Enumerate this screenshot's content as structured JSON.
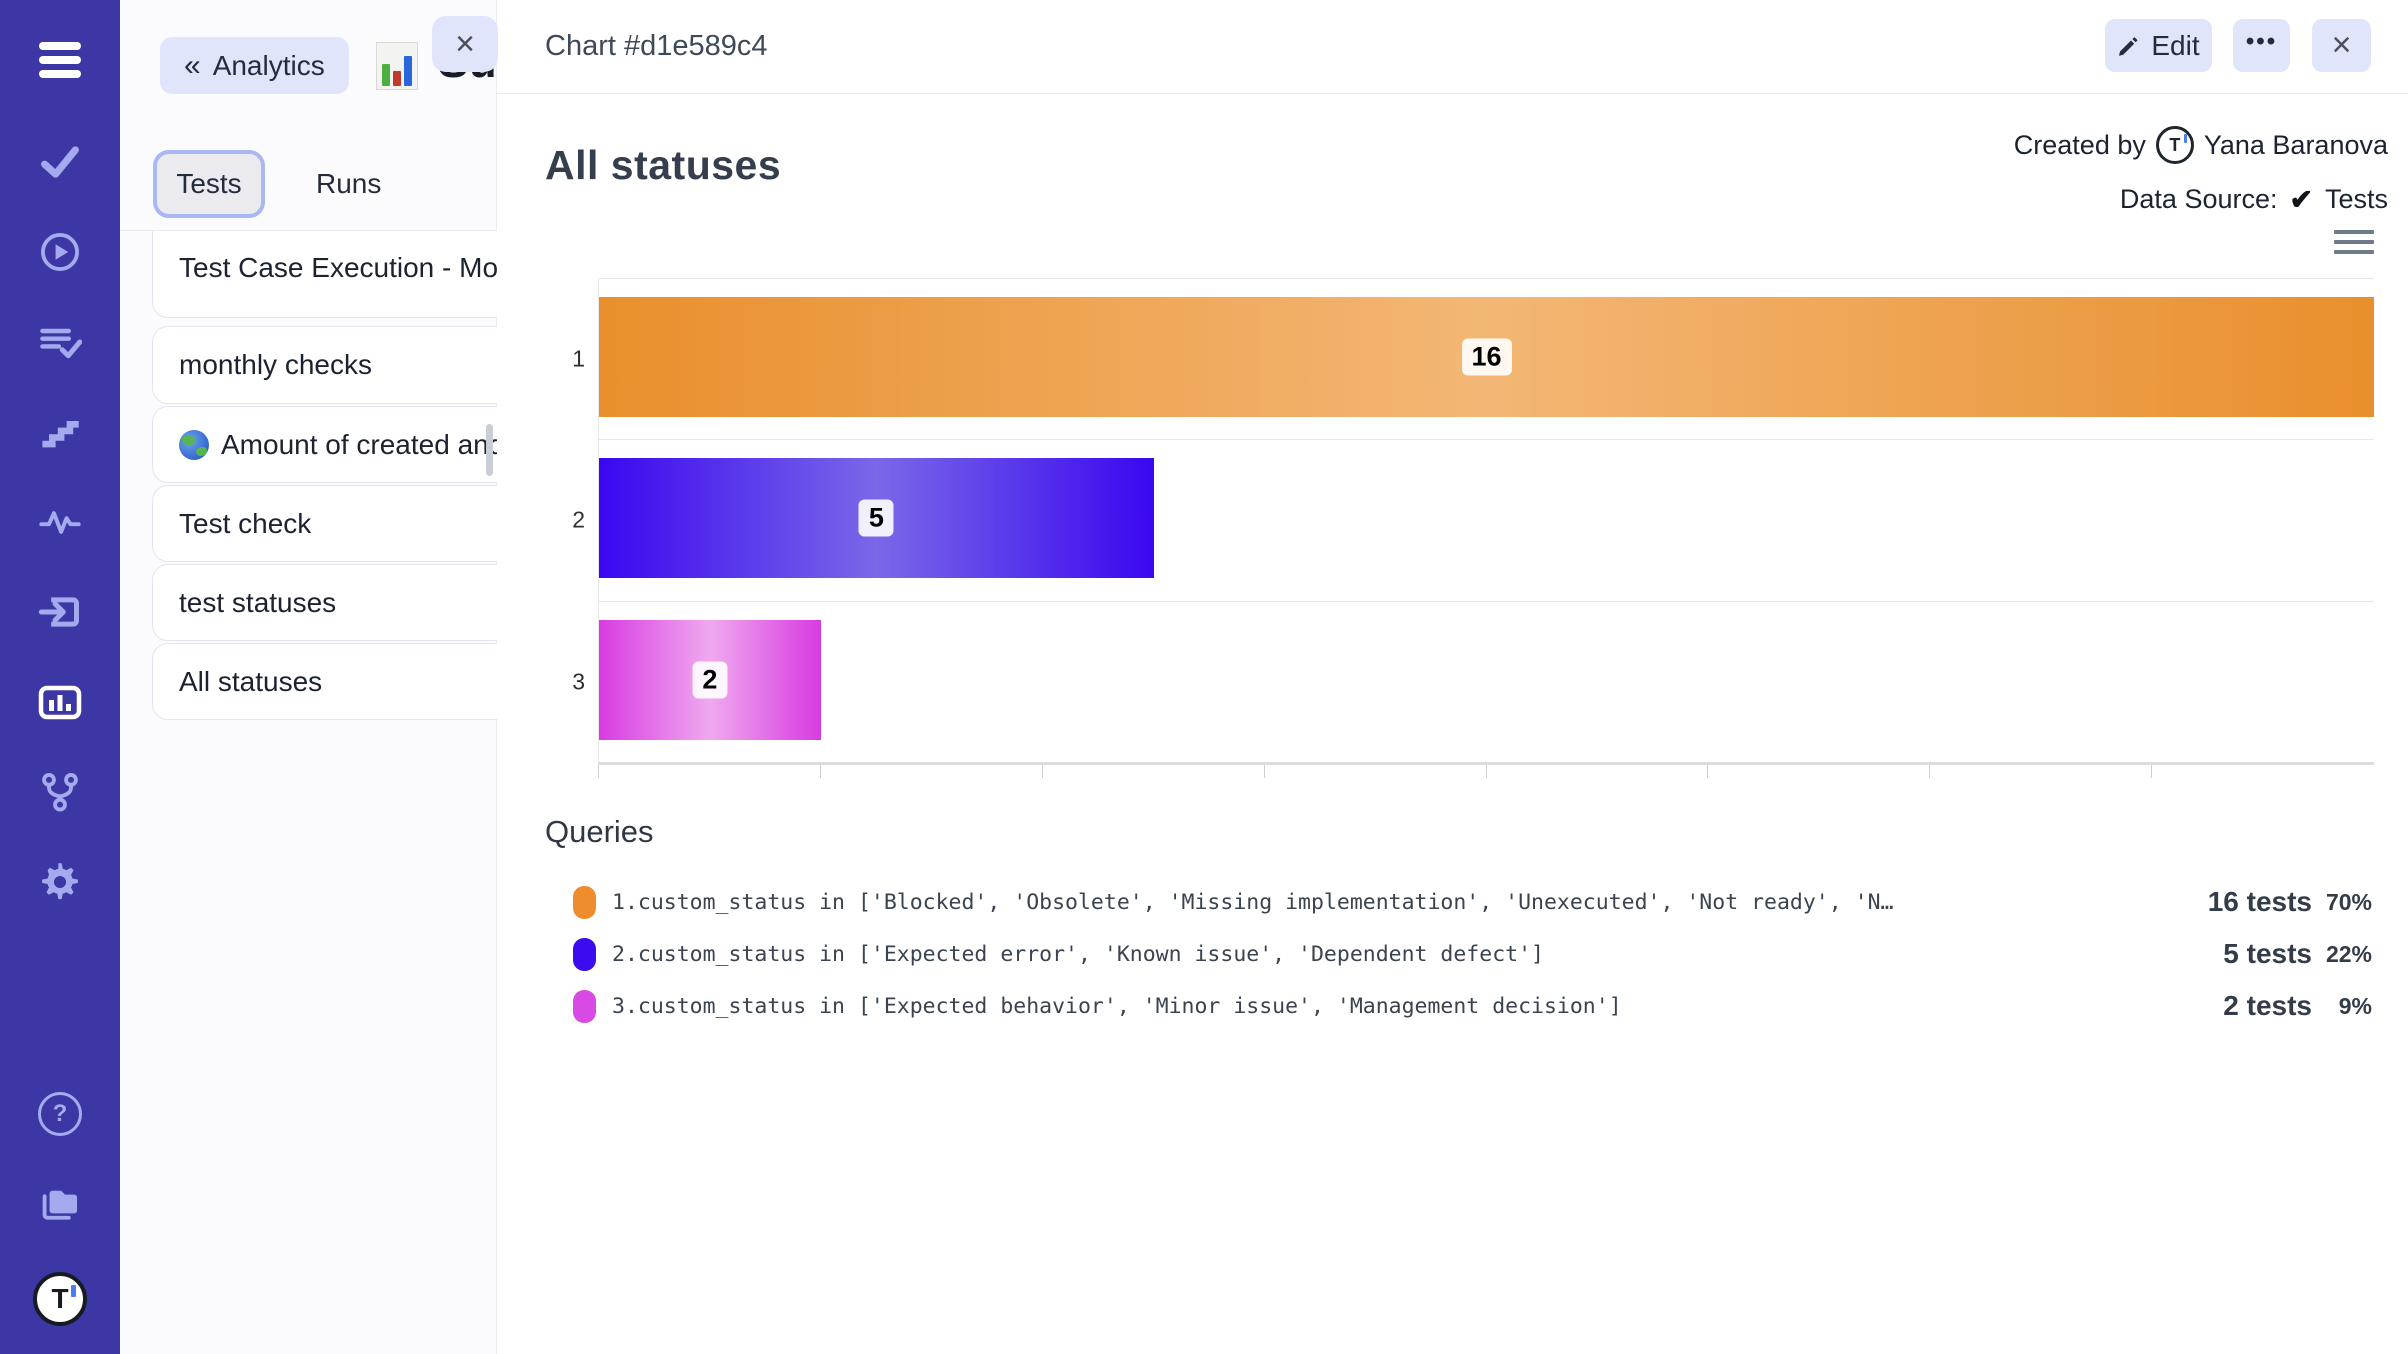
{
  "glyphs": {
    "back_chevron": "«",
    "close": "×",
    "more": "•••",
    "check": "✔",
    "help": "?",
    "logo_letter": "T"
  },
  "sidebar": {
    "bg_color": "#3d37a6",
    "icon_color": "#a3abee",
    "icons": [
      "menu",
      "tests-check",
      "runs-play",
      "test-plans-list",
      "steps",
      "pulse",
      "import",
      "analytics-chart",
      "branch",
      "settings-gear",
      "help",
      "projects-folders",
      "logo"
    ]
  },
  "panel": {
    "back_button": "Analytics",
    "partial_title": "Su",
    "tabs": [
      {
        "label": "Tests",
        "active": true
      },
      {
        "label": "Runs",
        "active": false
      }
    ],
    "items": [
      {
        "label": "Test Case Execution - Mo",
        "icon": ""
      },
      {
        "label": "monthly checks",
        "icon": ""
      },
      {
        "label": "Amount of created and",
        "icon": "globe"
      },
      {
        "label": "Test check",
        "icon": ""
      },
      {
        "label": "test statuses",
        "icon": ""
      },
      {
        "label": "All statuses",
        "icon": ""
      }
    ]
  },
  "header": {
    "title": "Chart #d1e589c4",
    "edit_label": "Edit"
  },
  "chart_meta": {
    "created_by_label": "Created by",
    "created_by_name": "Yana Baranova",
    "data_source_label": "Data Source:",
    "data_source_value": "Tests"
  },
  "chart_data": {
    "type": "bar",
    "orientation": "horizontal",
    "title": "All statuses",
    "categories": [
      "1",
      "2",
      "3"
    ],
    "values": [
      16,
      5,
      2
    ],
    "data_labels": [
      "16",
      "5",
      "2"
    ],
    "xlim": [
      0,
      16
    ],
    "x_tick_interval": 2,
    "grid": "category band lines, bottom axis with minor ticks, no x labels",
    "legend_position": "below chart as Queries list",
    "bar_colors": [
      {
        "edge": "#e98f2d",
        "center": "#f3b775"
      },
      {
        "edge": "#3a07f0",
        "center": "#7a68e8"
      },
      {
        "edge": "#d83be1",
        "center": "#efa9ef"
      }
    ]
  },
  "queries": {
    "heading": "Queries",
    "rows": [
      {
        "swatch_color": "#ed8d2e",
        "query": "1.custom_status in ['Blocked', 'Obsolete', 'Missing implementation', 'Unexecuted', 'Not ready', 'N…",
        "tests": "16 tests",
        "percent": "70%"
      },
      {
        "swatch_color": "#3c0cf0",
        "query": "2.custom_status in ['Expected error', 'Known issue', 'Dependent defect']",
        "tests": "5 tests",
        "percent": "22%"
      },
      {
        "swatch_color": "#d84ae4",
        "query": "3.custom_status in ['Expected behavior', 'Minor issue', 'Management decision']",
        "tests": "2 tests",
        "percent": "9%"
      }
    ]
  }
}
